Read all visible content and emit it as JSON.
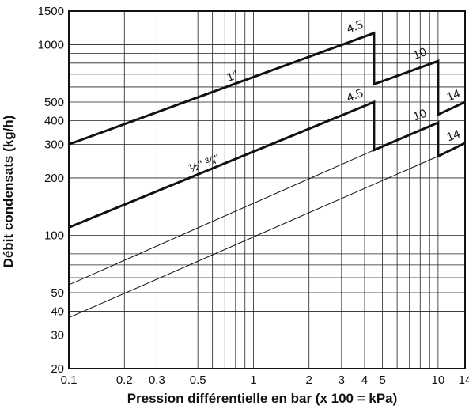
{
  "chart_data": {
    "type": "line",
    "xlabel": "Pression différentielle en bar (x 100 = kPa)",
    "ylabel": "Débit condensats (kg/h)",
    "x_scale": "log",
    "y_scale": "log",
    "xlim": [
      0.1,
      14
    ],
    "ylim": [
      20,
      1500
    ],
    "x_ticks": [
      {
        "v": 0.1,
        "label": "0.1"
      },
      {
        "v": 0.2,
        "label": "0.2"
      },
      {
        "v": 0.3,
        "label": "0.3"
      },
      {
        "v": 0.5,
        "label": "0.5"
      },
      {
        "v": 1,
        "label": "1"
      },
      {
        "v": 2,
        "label": "2"
      },
      {
        "v": 3,
        "label": "3"
      },
      {
        "v": 4,
        "label": "4"
      },
      {
        "v": 5,
        "label": "5"
      },
      {
        "v": 10,
        "label": "10"
      },
      {
        "v": 14,
        "label": "14"
      }
    ],
    "y_ticks": [
      {
        "v": 20,
        "label": "20"
      },
      {
        "v": 30,
        "label": "30"
      },
      {
        "v": 40,
        "label": "40"
      },
      {
        "v": 50,
        "label": "50"
      },
      {
        "v": 100,
        "label": "100"
      },
      {
        "v": 200,
        "label": "200"
      },
      {
        "v": 300,
        "label": "300"
      },
      {
        "v": 400,
        "label": "400"
      },
      {
        "v": 500,
        "label": "500"
      },
      {
        "v": 1000,
        "label": "1000"
      },
      {
        "v": 1500,
        "label": "1500"
      }
    ],
    "grid": true,
    "series": [
      {
        "id": "one-inch-line",
        "weight": "bold",
        "points": [
          [
            0.1,
            300
          ],
          [
            4.5,
            1150
          ],
          [
            4.5,
            620
          ],
          [
            10,
            820
          ],
          [
            10,
            430
          ],
          [
            14,
            500
          ]
        ]
      },
      {
        "id": "half-three-quarter-line",
        "weight": "bold",
        "points": [
          [
            0.1,
            110
          ],
          [
            4.5,
            500
          ],
          [
            4.5,
            280
          ],
          [
            10,
            390
          ],
          [
            10,
            260
          ],
          [
            14,
            305
          ]
        ]
      },
      {
        "id": "upper-thin-line",
        "weight": "thin",
        "points": [
          [
            0.1,
            55
          ],
          [
            4.5,
            280
          ]
        ]
      },
      {
        "id": "lower-thin-line",
        "weight": "thin",
        "points": [
          [
            0.1,
            37
          ],
          [
            10,
            260
          ]
        ]
      }
    ],
    "annotations": [
      {
        "id": "label-1-inch",
        "text": "1\"",
        "x": 0.78,
        "y": 655
      },
      {
        "id": "label-half-three-quarter",
        "text": "½\" ¾\"",
        "x": 0.55,
        "y": 228
      },
      {
        "id": "label-4-5-upper",
        "text": "4.5",
        "x": 3.6,
        "y": 1190
      },
      {
        "id": "label-4-5-lower",
        "text": "4.5",
        "x": 3.6,
        "y": 520
      },
      {
        "id": "label-10-upper",
        "text": "10",
        "x": 8.1,
        "y": 860
      },
      {
        "id": "label-10-lower",
        "text": "10",
        "x": 8.1,
        "y": 410
      },
      {
        "id": "label-14-upper",
        "text": "14",
        "x": 12.3,
        "y": 520
      },
      {
        "id": "label-14-lower",
        "text": "14",
        "x": 12.3,
        "y": 320
      }
    ]
  }
}
